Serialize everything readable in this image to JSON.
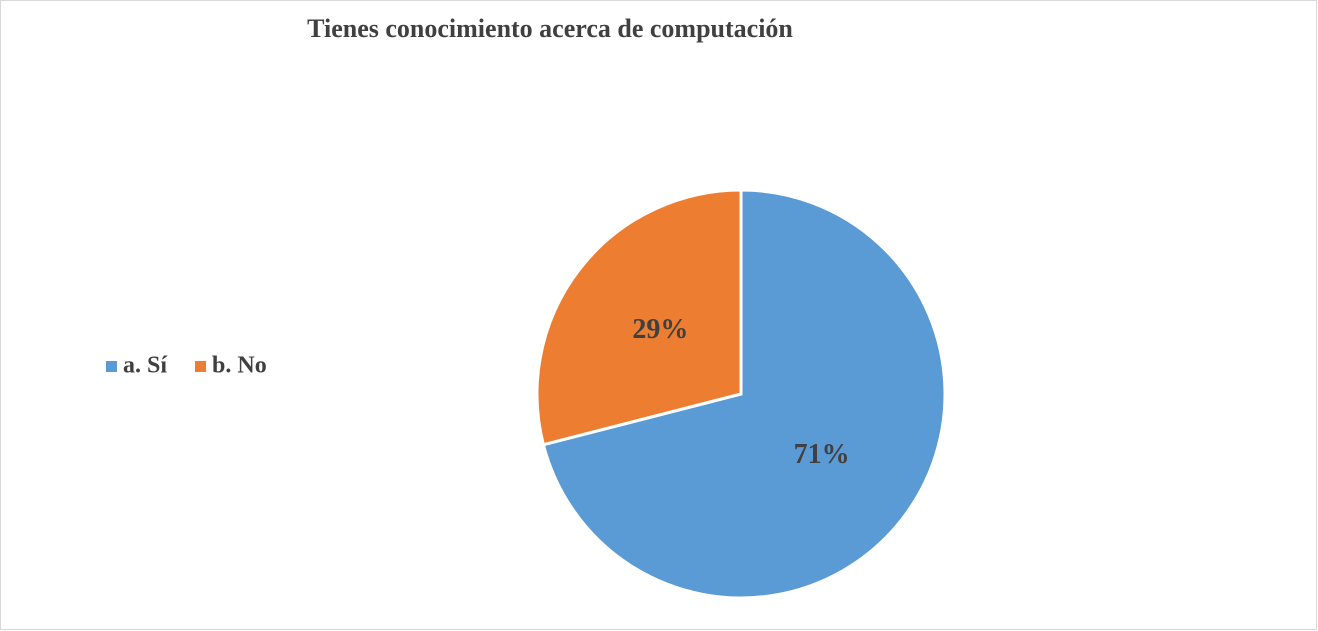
{
  "chart_data": {
    "type": "pie",
    "title": "Tienes conocimiento acerca de computación",
    "categories": [
      "a. Sí",
      "b. No"
    ],
    "values": [
      71,
      29
    ],
    "value_labels": [
      "71%",
      "29%"
    ],
    "colors": [
      "#5b9bd5",
      "#ed7d31"
    ],
    "legend": "left"
  }
}
